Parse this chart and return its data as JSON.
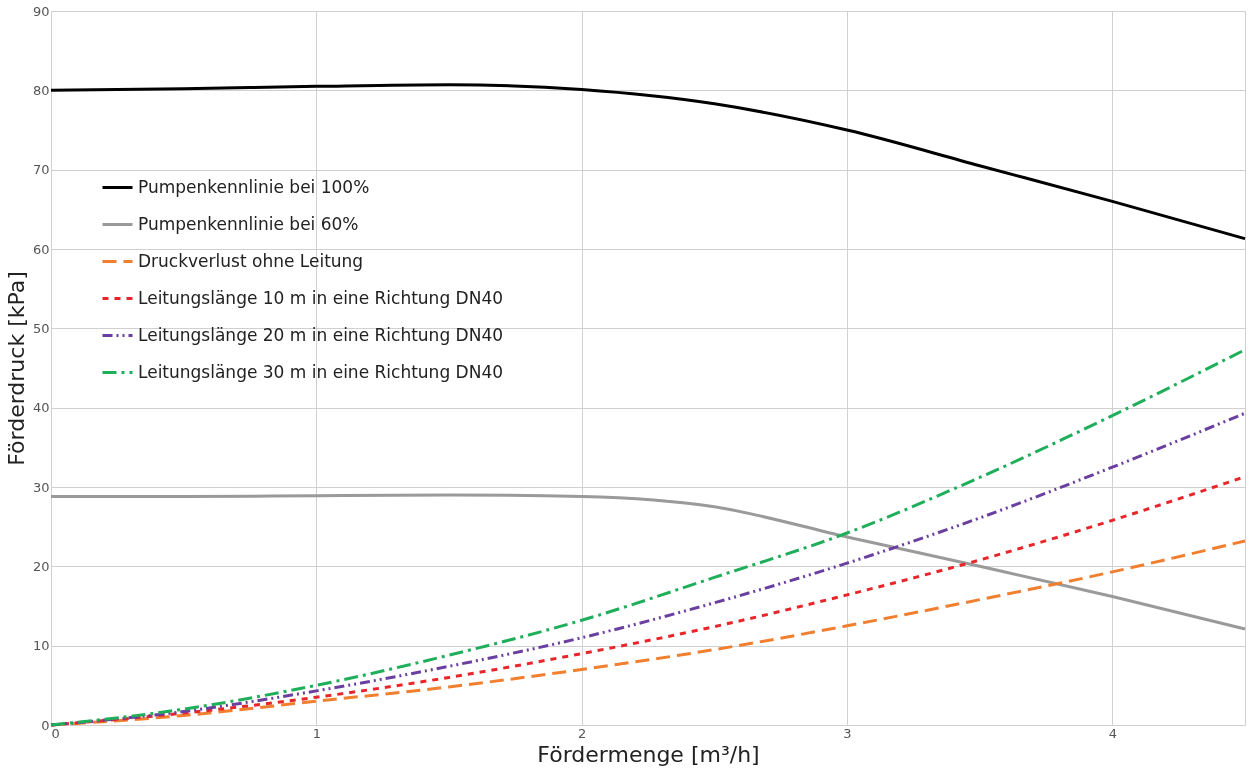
{
  "chart_data": {
    "type": "line",
    "xlabel": "Fördermenge [m³/h]",
    "ylabel": "Förderdruck [kPa]",
    "x": [
      0,
      0.5,
      1,
      1.5,
      2,
      2.5,
      3,
      3.5,
      4,
      4.5
    ],
    "series": [
      {
        "name": "Pumpenkennlinie bei 100%",
        "color": "#000000",
        "line_style": "solid",
        "values": [
          80,
          80.2,
          80.5,
          80.7,
          80.1,
          78.3,
          75,
          70.5,
          66,
          61.3
        ]
      },
      {
        "name": "Pumpenkennlinie bei 60%",
        "color": "#9a9a9a",
        "line_style": "solid",
        "values": [
          28.8,
          28.8,
          28.9,
          29,
          28.8,
          27.5,
          23.7,
          20,
          16.2,
          12.1
        ]
      },
      {
        "name": "Druckverlust ohne Leitung",
        "color": "#f07f2f",
        "line_style": "dashed",
        "values": [
          0,
          1.2,
          3,
          4.8,
          7,
          9.5,
          12.5,
          15.8,
          19.3,
          23.2
        ]
      },
      {
        "name": "Leitungslänge 10 m in eine Richtung DN40",
        "color": "#e8262a",
        "line_style": "dashed",
        "values": [
          0,
          1.5,
          3.5,
          6,
          9,
          12.4,
          16.4,
          20.8,
          25.8,
          31.3
        ]
      },
      {
        "name": "Leitungslänge 20 m in eine Richtung DN40",
        "color": "#6b3fa0",
        "line_style": "dashed",
        "values": [
          0,
          1.7,
          4.3,
          7.4,
          11,
          15.4,
          20.4,
          26.1,
          32.5,
          39.3
        ]
      },
      {
        "name": "Leitungslänge 30 m in eine Richtung DN40",
        "color": "#1fae5a",
        "line_style": "dashed",
        "values": [
          0,
          2,
          5,
          8.8,
          13.2,
          18.6,
          24.2,
          31.2,
          39,
          47.3
        ]
      }
    ],
    "xlim": [
      0,
      4.5
    ],
    "xticks": [
      0,
      1,
      2,
      3,
      4
    ],
    "ylim": [
      0,
      90
    ],
    "yticks": [
      0,
      10,
      20,
      30,
      40,
      50,
      60,
      70,
      80,
      90
    ],
    "grid": true,
    "legend": "top left",
    "marker": "none"
  }
}
